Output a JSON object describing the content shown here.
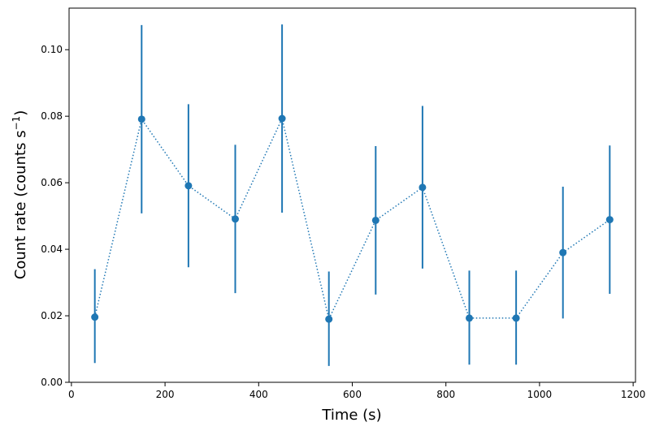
{
  "chart_data": {
    "type": "scatter",
    "xlabel": "Time (s)",
    "ylabel_main": "Count rate (counts s",
    "ylabel_sup": "−1",
    "ylabel_close": ")",
    "xlim": [
      -5,
      1205
    ],
    "ylim": [
      0,
      0.1125
    ],
    "xticks": [
      0,
      200,
      400,
      600,
      800,
      1000,
      1200
    ],
    "xtick_labels": [
      "0",
      "200",
      "400",
      "600",
      "800",
      "1000",
      "1200"
    ],
    "yticks": [
      0.0,
      0.02,
      0.04,
      0.06,
      0.08,
      0.1
    ],
    "ytick_labels": [
      "0.00",
      "0.02",
      "0.04",
      "0.06",
      "0.08",
      "0.10"
    ],
    "grid": false,
    "series": [
      {
        "color": "#1f77b4",
        "line_style": "dotted",
        "marker": "circle",
        "x": [
          50,
          150,
          250,
          350,
          450,
          550,
          650,
          750,
          850,
          950,
          1050,
          1150
        ],
        "y": [
          0.0196,
          0.0791,
          0.0591,
          0.0491,
          0.0793,
          0.019,
          0.0487,
          0.0586,
          0.0193,
          0.0193,
          0.039,
          0.0489
        ],
        "yerr_low": [
          0.0058,
          0.0508,
          0.0346,
          0.0268,
          0.051,
          0.0049,
          0.0264,
          0.0342,
          0.0053,
          0.0053,
          0.0192,
          0.0266
        ],
        "yerr_high": [
          0.034,
          0.1074,
          0.0836,
          0.0714,
          0.1076,
          0.0333,
          0.071,
          0.0831,
          0.0336,
          0.0336,
          0.0588,
          0.0712
        ]
      }
    ]
  }
}
